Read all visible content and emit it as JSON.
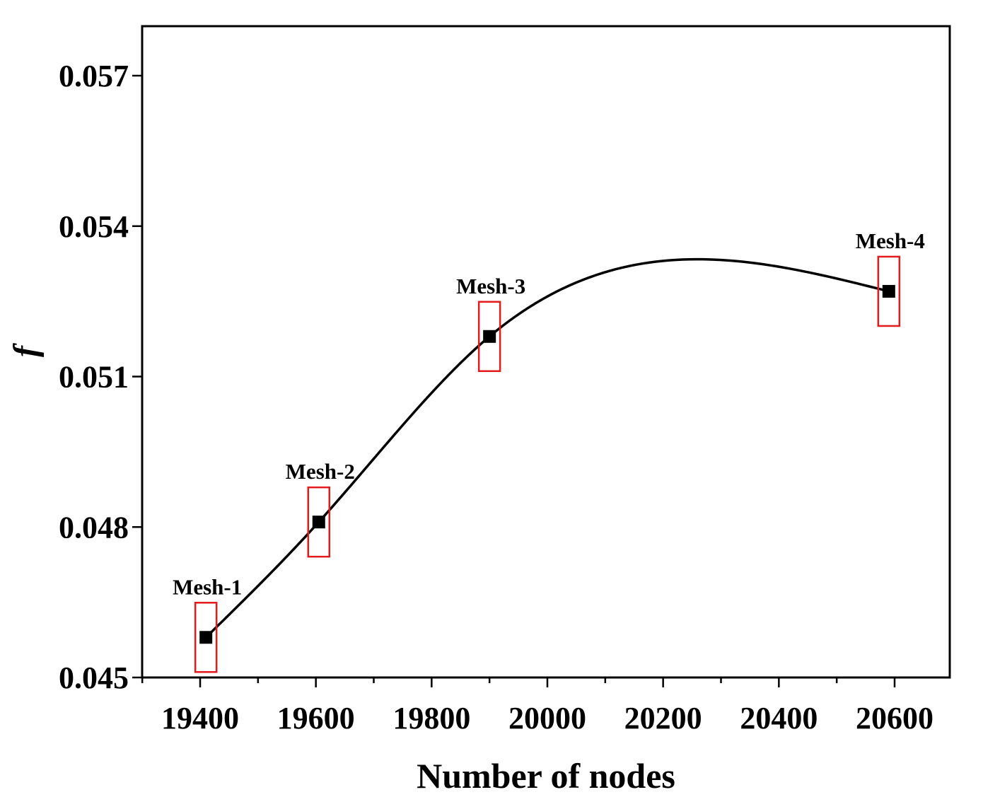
{
  "chart_data": {
    "type": "line",
    "title": "",
    "xlabel": "Number of nodes",
    "ylabel": "f",
    "xlim": [
      19300,
      20700
    ],
    "ylim": [
      0.045,
      0.058
    ],
    "xticks": [
      19400,
      19600,
      19800,
      20000,
      20200,
      20400,
      20600
    ],
    "xtick_labels": [
      "19400",
      "19600",
      "19800",
      "20000",
      "20200",
      "20400",
      "20600"
    ],
    "yticks": [
      0.045,
      0.048,
      0.051,
      0.054,
      0.057
    ],
    "ytick_labels": [
      "0.045",
      "0.048",
      "0.051",
      "0.054",
      "0.057"
    ],
    "series": [
      {
        "name": "f",
        "x": [
          19410,
          19605,
          19900,
          20590
        ],
        "y": [
          0.0458,
          0.0481,
          0.0518,
          0.0527
        ],
        "labels": [
          "Mesh-1",
          "Mesh-2",
          "Mesh-3",
          "Mesh-4"
        ],
        "highlight_color": "#e41a1c",
        "marker": "square",
        "line": "smooth"
      }
    ],
    "grid": false,
    "legend": "none"
  }
}
